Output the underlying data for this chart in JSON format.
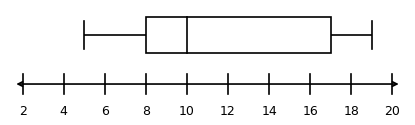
{
  "low": 5,
  "q1": 8,
  "median": 10,
  "q3": 17,
  "high": 19,
  "axis_min": 2,
  "axis_max": 20,
  "axis_step": 2,
  "background_color": "#ffffff",
  "box_facecolor": "#ffffff",
  "box_edgecolor": "#000000",
  "line_color": "#000000",
  "linewidth": 1.2,
  "fontsize": 9,
  "figwidth": 4.15,
  "figheight": 1.25,
  "dpi": 100
}
